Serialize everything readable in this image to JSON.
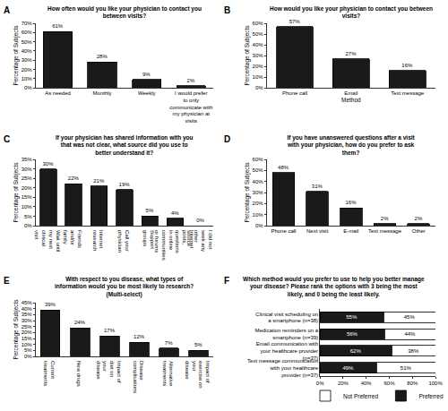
{
  "chart_data": [
    {
      "panel": "A",
      "type": "bar",
      "title": "How often would you like your physician to contact you between visits?",
      "ylabel": "Percentage of Subjects",
      "categories": [
        "As needed",
        "Monthly",
        "Weekly",
        "I would prefer to only communicate with my physician at visits"
      ],
      "values": [
        61,
        28,
        9,
        2
      ],
      "value_labels": [
        "61%",
        "28%",
        "9%",
        "2%"
      ],
      "color": "#1a1a1a",
      "data_labels": true,
      "grid": false,
      "ylim": [
        0,
        70
      ],
      "yticks": [
        {
          "value": 0,
          "label": "0%"
        },
        {
          "value": 10,
          "label": "10%"
        },
        {
          "value": 20,
          "label": "20%"
        },
        {
          "value": 30,
          "label": "30%"
        },
        {
          "value": 40,
          "label": "40%"
        },
        {
          "value": 50,
          "label": "50%"
        },
        {
          "value": 60,
          "label": "60%"
        },
        {
          "value": 70,
          "label": "70%"
        }
      ]
    },
    {
      "panel": "B",
      "type": "bar",
      "title": "How would you like your physician to contact you between visits?",
      "ylabel": "Percentage of Subjects",
      "xlabel": "Method",
      "categories": [
        "Phone call",
        "Email",
        "Text message"
      ],
      "values": [
        57,
        27,
        16
      ],
      "value_labels": [
        "57%",
        "27%",
        "16%"
      ],
      "color": "#1a1a1a",
      "data_labels": true,
      "grid": false,
      "ylim": [
        0,
        60
      ],
      "yticks": [
        {
          "value": 0,
          "label": "0%"
        },
        {
          "value": 10,
          "label": "10%"
        },
        {
          "value": 20,
          "label": "20%"
        },
        {
          "value": 30,
          "label": "30%"
        },
        {
          "value": 40,
          "label": "40%"
        },
        {
          "value": 50,
          "label": "50%"
        },
        {
          "value": 60,
          "label": "60%"
        }
      ]
    },
    {
      "panel": "C",
      "type": "bar",
      "title": "If your physician has shared information with you that was not clear, what source did you use to better understand it?",
      "ylabel": "Percentage of Subjects",
      "categories": [
        "Wait until my next clinical visit",
        "Friends and/or family",
        "Internet research",
        "Call your physician",
        "Support groups",
        "Internet posts, questions in online communities or forums",
        "I did not seek any other source"
      ],
      "values": [
        30,
        22,
        21,
        19,
        5,
        4,
        0
      ],
      "value_labels": [
        "30%",
        "22%",
        "21%",
        "19%",
        "5%",
        "4%",
        "0%"
      ],
      "color": "#1a1a1a",
      "data_labels": true,
      "grid": false,
      "ylim": [
        0,
        35
      ],
      "yticks": [
        {
          "value": 0,
          "label": "0%"
        },
        {
          "value": 5,
          "label": "5%"
        },
        {
          "value": 10,
          "label": "10%"
        },
        {
          "value": 15,
          "label": "15%"
        },
        {
          "value": 20,
          "label": "20%"
        },
        {
          "value": 25,
          "label": "25%"
        },
        {
          "value": 30,
          "label": "30%"
        },
        {
          "value": 35,
          "label": "35%"
        }
      ]
    },
    {
      "panel": "D",
      "type": "bar",
      "title": "If you have unanswered questions after a visit with your physician, how do you prefer to ask them?",
      "ylabel": "Percentage of Subjects",
      "categories": [
        "Phone call",
        "Next visit",
        "E-mail",
        "Text message",
        "Other"
      ],
      "values": [
        48,
        31,
        16,
        2,
        2
      ],
      "value_labels": [
        "48%",
        "31%",
        "16%",
        "2%",
        "2%"
      ],
      "color": "#1a1a1a",
      "data_labels": true,
      "grid": false,
      "ylim": [
        0,
        60
      ],
      "yticks": [
        {
          "value": 0,
          "label": "0%"
        },
        {
          "value": 10,
          "label": "10%"
        },
        {
          "value": 20,
          "label": "20%"
        },
        {
          "value": 30,
          "label": "30%"
        },
        {
          "value": 40,
          "label": "40%"
        },
        {
          "value": 50,
          "label": "50%"
        },
        {
          "value": 60,
          "label": "60%"
        }
      ]
    },
    {
      "panel": "E",
      "type": "bar",
      "title": "With respect to you disease, what types of information would you be most likely to research? (Multi-select)",
      "ylabel": "Percentage of Subjects",
      "categories": [
        "Current treatments",
        "New drugs",
        "Impact of diet on your disease",
        "Disease complications",
        "Alternative treatments",
        "Impact of exercise on your disease"
      ],
      "values": [
        39,
        24,
        17,
        12,
        7,
        5
      ],
      "value_labels": [
        "39%",
        "24%",
        "17%",
        "12%",
        "7%",
        "5%"
      ],
      "color": "#1a1a1a",
      "data_labels": true,
      "grid": false,
      "ylim": [
        0,
        45
      ],
      "yticks": [
        {
          "value": 0,
          "label": "0%"
        },
        {
          "value": 5,
          "label": "5%"
        },
        {
          "value": 10,
          "label": "10%"
        },
        {
          "value": 15,
          "label": "15%"
        },
        {
          "value": 20,
          "label": "20%"
        },
        {
          "value": 25,
          "label": "25%"
        },
        {
          "value": 30,
          "label": "30%"
        },
        {
          "value": 35,
          "label": "35%"
        },
        {
          "value": 40,
          "label": "40%"
        },
        {
          "value": 45,
          "label": "45%"
        }
      ]
    },
    {
      "panel": "F",
      "type": "bar",
      "orientation": "horizontal",
      "stacked": true,
      "title": "Which method would you prefer to use to help you better manage your disease? Please rank the options with 3 being the most likely, and 0 being the least likely.",
      "categories": [
        "Clinical visit scheduling on a smartphone (n=38)",
        "Medication reminders on a smartphone (n=39)",
        "Email communication with your healthcare provider (n=37)",
        "Text message communication with your healthcare provider (n=37)"
      ],
      "series": [
        {
          "name": "Preferred",
          "color": "#1a1a1a",
          "values": [
            55,
            56,
            62,
            49
          ],
          "value_labels": [
            "55%",
            "56%",
            "62%",
            "49%"
          ]
        },
        {
          "name": "Not Preferred",
          "color": "#ffffff",
          "values": [
            45,
            44,
            38,
            51
          ],
          "value_labels": [
            "45%",
            "44%",
            "38%",
            "51%"
          ]
        }
      ],
      "data_labels": true,
      "legend": "bottom",
      "grid": false,
      "xlim": [
        0,
        100
      ],
      "xticks": [
        {
          "value": 0,
          "label": "0%"
        },
        {
          "value": 20,
          "label": "20%"
        },
        {
          "value": 40,
          "label": "40%"
        },
        {
          "value": 60,
          "label": "60%"
        },
        {
          "value": 80,
          "label": "80%"
        },
        {
          "value": 100,
          "label": "100%"
        }
      ]
    }
  ]
}
